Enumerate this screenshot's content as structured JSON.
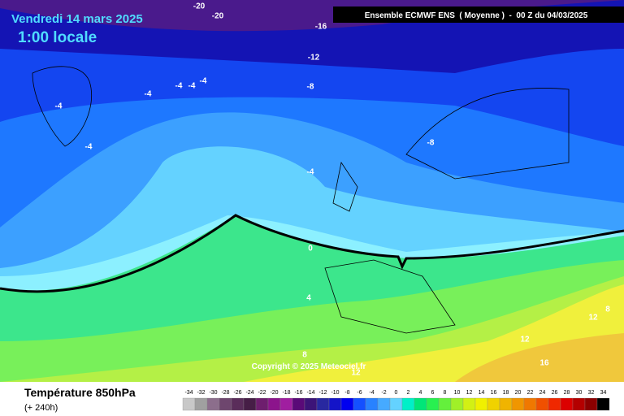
{
  "header": {
    "date": "Vendredi 14 mars 2025",
    "time": "1:00 locale",
    "model": "Ensemble ECMWF ENS  ( Moyenne )  -  00 Z du 04/03/2025"
  },
  "map": {
    "copyright": "Copyright © 2025 Meteociel.fr",
    "contour_labels": [
      -20,
      -20,
      -16,
      -12,
      -8,
      -4,
      -4,
      -4,
      -4,
      -4,
      -4,
      -8,
      -4,
      0,
      4,
      8,
      12,
      12,
      8,
      12,
      16
    ]
  },
  "footer": {
    "title": "Température 850hPa",
    "lead": "(+ 240h)"
  },
  "legend": {
    "values": [
      -34,
      -32,
      -30,
      -28,
      -26,
      -24,
      -22,
      -20,
      -18,
      -16,
      -14,
      -12,
      -10,
      -8,
      -6,
      -4,
      -2,
      0,
      2,
      4,
      6,
      8,
      10,
      12,
      14,
      16,
      18,
      20,
      22,
      24,
      26,
      28,
      30,
      32,
      34
    ],
    "colors": [
      "#c8c8c8",
      "#a0a0a0",
      "#8c6e8c",
      "#6e466e",
      "#5a2d5a",
      "#461e46",
      "#6e1e6e",
      "#8c148c",
      "#a01ea0",
      "#5a0a78",
      "#3c1478",
      "#2828a0",
      "#1414c8",
      "#0000f0",
      "#1450ff",
      "#2882ff",
      "#46aaff",
      "#64d2ff",
      "#00f0c8",
      "#00e678",
      "#28f050",
      "#64f03c",
      "#a0f028",
      "#d2f014",
      "#f0f000",
      "#f0d200",
      "#f0b400",
      "#f09600",
      "#f07800",
      "#f05000",
      "#f02800",
      "#dc0000",
      "#b40000",
      "#8c0000",
      "#000000"
    ]
  }
}
